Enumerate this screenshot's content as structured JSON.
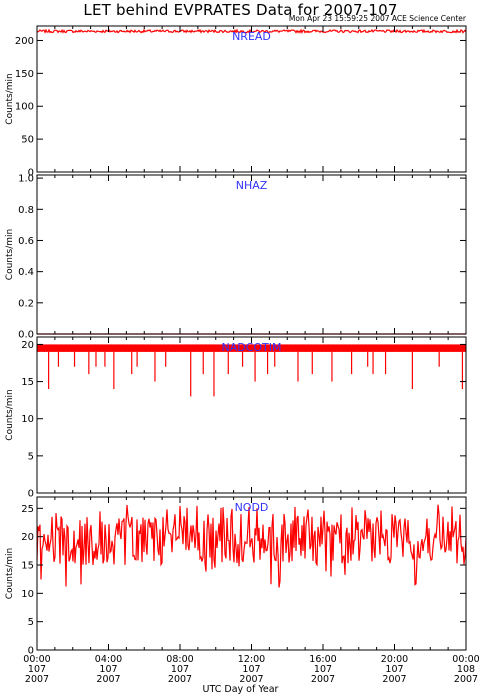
{
  "header": {
    "title": "LET behind EVPRATES Data for 2007-107",
    "stamp": "Mon Apr 23 15:59:25 2007 ACE Science Center"
  },
  "colors": {
    "series": "#ff0000",
    "panel_label": "#3333ff",
    "axis": "#000000"
  },
  "xlabel": "UTC Day of Year",
  "chart_data": [
    {
      "type": "line",
      "series": [
        {
          "name": "NREAD",
          "mean": 214,
          "jitter": 2,
          "dips": []
        }
      ],
      "ylabel": "Counts/min",
      "ylim": [
        0,
        222
      ],
      "yticks": [
        0,
        50,
        100,
        150,
        200
      ],
      "yticklabels": [
        "0",
        "50",
        "100",
        "150",
        "200"
      ]
    },
    {
      "type": "line",
      "series": [
        {
          "name": "NHAZ",
          "mean": 0,
          "jitter": 0,
          "dips": []
        }
      ],
      "ylabel": "Counts/min",
      "ylim": [
        0,
        1.02
      ],
      "yticks": [
        0,
        0.2,
        0.4,
        0.6,
        0.8,
        1.0
      ],
      "yticklabels": [
        "0.0",
        "0.2",
        "0.4",
        "0.6",
        "0.8",
        "1.0"
      ]
    },
    {
      "type": "line",
      "series": [
        {
          "name": "NADCOTIM",
          "levels": [
            19,
            20
          ],
          "dips": [
            {
              "x": 0.65,
              "y": 14
            },
            {
              "x": 1.2,
              "y": 17
            },
            {
              "x": 2.1,
              "y": 17
            },
            {
              "x": 2.9,
              "y": 16
            },
            {
              "x": 3.3,
              "y": 17
            },
            {
              "x": 3.8,
              "y": 17
            },
            {
              "x": 4.3,
              "y": 14
            },
            {
              "x": 5.3,
              "y": 16
            },
            {
              "x": 5.6,
              "y": 17
            },
            {
              "x": 6.6,
              "y": 15
            },
            {
              "x": 7.2,
              "y": 17
            },
            {
              "x": 8.6,
              "y": 13
            },
            {
              "x": 9.3,
              "y": 16
            },
            {
              "x": 9.9,
              "y": 13
            },
            {
              "x": 10.7,
              "y": 16
            },
            {
              "x": 11.5,
              "y": 17
            },
            {
              "x": 12.2,
              "y": 15
            },
            {
              "x": 12.9,
              "y": 16
            },
            {
              "x": 13.3,
              "y": 17
            },
            {
              "x": 14.6,
              "y": 15
            },
            {
              "x": 15.4,
              "y": 16
            },
            {
              "x": 16.5,
              "y": 15
            },
            {
              "x": 17.6,
              "y": 16
            },
            {
              "x": 18.5,
              "y": 17
            },
            {
              "x": 18.8,
              "y": 16
            },
            {
              "x": 19.5,
              "y": 16
            },
            {
              "x": 21.0,
              "y": 14
            },
            {
              "x": 22.5,
              "y": 17
            },
            {
              "x": 23.8,
              "y": 14
            }
          ]
        }
      ],
      "ylabel": "Counts/min",
      "ylim": [
        0,
        21
      ],
      "yticks": [
        0,
        5,
        10,
        15,
        20
      ],
      "yticklabels": [
        "0",
        "5",
        "10",
        "15",
        "20"
      ]
    },
    {
      "type": "line",
      "series": [
        {
          "name": "NODD",
          "mean": 19.5,
          "range": [
            11,
            26
          ]
        }
      ],
      "ylabel": "Counts/min",
      "ylim": [
        0,
        27
      ],
      "yticks": [
        0,
        5,
        10,
        15,
        20,
        25
      ],
      "yticklabels": [
        "0",
        "5",
        "10",
        "15",
        "20",
        "25"
      ]
    }
  ],
  "x_axis": {
    "range_hours": [
      0,
      24
    ],
    "ticks_hours": [
      0,
      4,
      8,
      12,
      16,
      20,
      24
    ],
    "tick_labels": [
      [
        "00:00",
        "107",
        "2007"
      ],
      [
        "04:00",
        "107",
        "2007"
      ],
      [
        "08:00",
        "107",
        "2007"
      ],
      [
        "12:00",
        "107",
        "2007"
      ],
      [
        "16:00",
        "107",
        "2007"
      ],
      [
        "20:00",
        "107",
        "2007"
      ],
      [
        "00:00",
        "108",
        "2007"
      ]
    ]
  }
}
